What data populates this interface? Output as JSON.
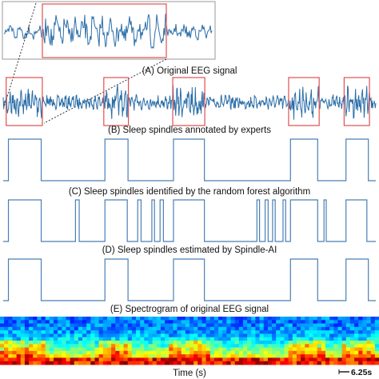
{
  "captions": {
    "a": "(A) Original EEG signal",
    "b": "(B) Sleep spindles annotated by experts",
    "c": "(C) Sleep spindles identified by the random forest algorithm",
    "d": "(D) Sleep spindles estimated by Spindle-AI",
    "e": "(E) Spectrogram of original EEG signal"
  },
  "x_axis_label": "Time (s)",
  "scale_bar_label": "6.25s",
  "colors": {
    "signal": "#2b6ea8",
    "highlight_box": "#e05050",
    "spindle_trace": "#4a7fb5",
    "axes": "#888888"
  },
  "chart_data": [
    {
      "type": "line",
      "panel": "A",
      "caption": "(A) Original EEG signal",
      "description": "continuous EEG trace with an inset zoom of one spindle region",
      "x_range": [
        0,
        100
      ],
      "spindle_segments": [
        [
          0.8,
          10.5
        ],
        [
          27.0,
          33.6
        ],
        [
          45.5,
          54.1
        ],
        [
          76.6,
          84.8
        ],
        [
          91.5,
          98.3
        ]
      ],
      "inset_segment": [
        11.0,
        44.0
      ]
    },
    {
      "type": "line",
      "panel": "B",
      "caption": "(B) Sleep spindles annotated by experts",
      "x_range": [
        0,
        100
      ],
      "y_levels": [
        0,
        1
      ],
      "segments": [
        [
          1.4,
          10.2
        ],
        [
          27.3,
          33.5
        ],
        [
          45.7,
          54.0
        ],
        [
          77.1,
          84.4
        ],
        [
          92.0,
          98.0
        ]
      ]
    },
    {
      "type": "line",
      "panel": "C",
      "caption": "(C) Sleep spindles identified by the random forest algorithm",
      "x_range": [
        0,
        100
      ],
      "y_levels": [
        0,
        1
      ],
      "segments": [
        [
          1.4,
          10.2
        ],
        [
          19.4,
          20.4
        ],
        [
          27.3,
          33.3
        ],
        [
          36.1,
          37.0
        ],
        [
          39.9,
          40.6
        ],
        [
          42.1,
          43.0
        ],
        [
          45.7,
          54.0
        ],
        [
          68.1,
          68.8
        ],
        [
          70.3,
          71.1
        ],
        [
          72.3,
          73.0
        ],
        [
          75.1,
          75.8
        ],
        [
          77.1,
          84.4
        ],
        [
          86.1,
          86.7
        ],
        [
          92.0,
          97.6
        ]
      ]
    },
    {
      "type": "line",
      "panel": "D",
      "caption": "(D) Sleep spindles estimated by Spindle-AI",
      "x_range": [
        0,
        100
      ],
      "y_levels": [
        0,
        1
      ],
      "segments": [
        [
          1.4,
          10.2
        ],
        [
          27.3,
          33.5
        ],
        [
          45.7,
          54.0
        ],
        [
          77.1,
          84.4
        ],
        [
          92.0,
          98.0
        ]
      ]
    },
    {
      "type": "heatmap",
      "panel": "E",
      "caption": "(E) Spectrogram of original EEG signal",
      "xlabel": "Time (s)",
      "x_range": [
        0,
        100
      ],
      "columns": 92,
      "rows": 14,
      "colormap": "jet",
      "note": "high power concentrated in lowest frequency rows with bright bursts around spindle segments"
    }
  ]
}
